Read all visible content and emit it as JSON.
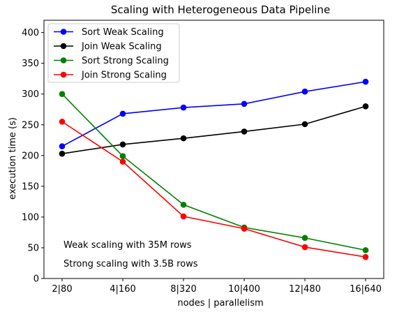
{
  "chart_data": {
    "type": "line",
    "title": "Scaling with Heterogeneous Data Pipeline",
    "xlabel": "nodes | parallelism",
    "ylabel": "execution time (s)",
    "categories": [
      "2|80",
      "4|160",
      "8|320",
      "10|400",
      "12|480",
      "16|640"
    ],
    "ylim": [
      0,
      420
    ],
    "yticks": [
      0,
      50,
      100,
      150,
      200,
      250,
      300,
      350,
      400
    ],
    "grid": false,
    "legend_position": "top-left",
    "series": [
      {
        "name": "Sort Weak Scaling",
        "color": "#0000ff",
        "values": [
          215,
          268,
          278,
          284,
          304,
          320
        ]
      },
      {
        "name": "Join Weak Scaling",
        "color": "#000000",
        "values": [
          203,
          218,
          228,
          239,
          251,
          280
        ]
      },
      {
        "name": "Sort Strong Scaling",
        "color": "#008000",
        "values": [
          300,
          199,
          120,
          83,
          66,
          46
        ]
      },
      {
        "name": "Join Strong Scaling",
        "color": "#ff0000",
        "values": [
          255,
          190,
          101,
          81,
          51,
          35
        ]
      }
    ],
    "annotations": [
      "Weak scaling with 35M rows",
      "Strong scaling with 3.5B rows"
    ]
  }
}
